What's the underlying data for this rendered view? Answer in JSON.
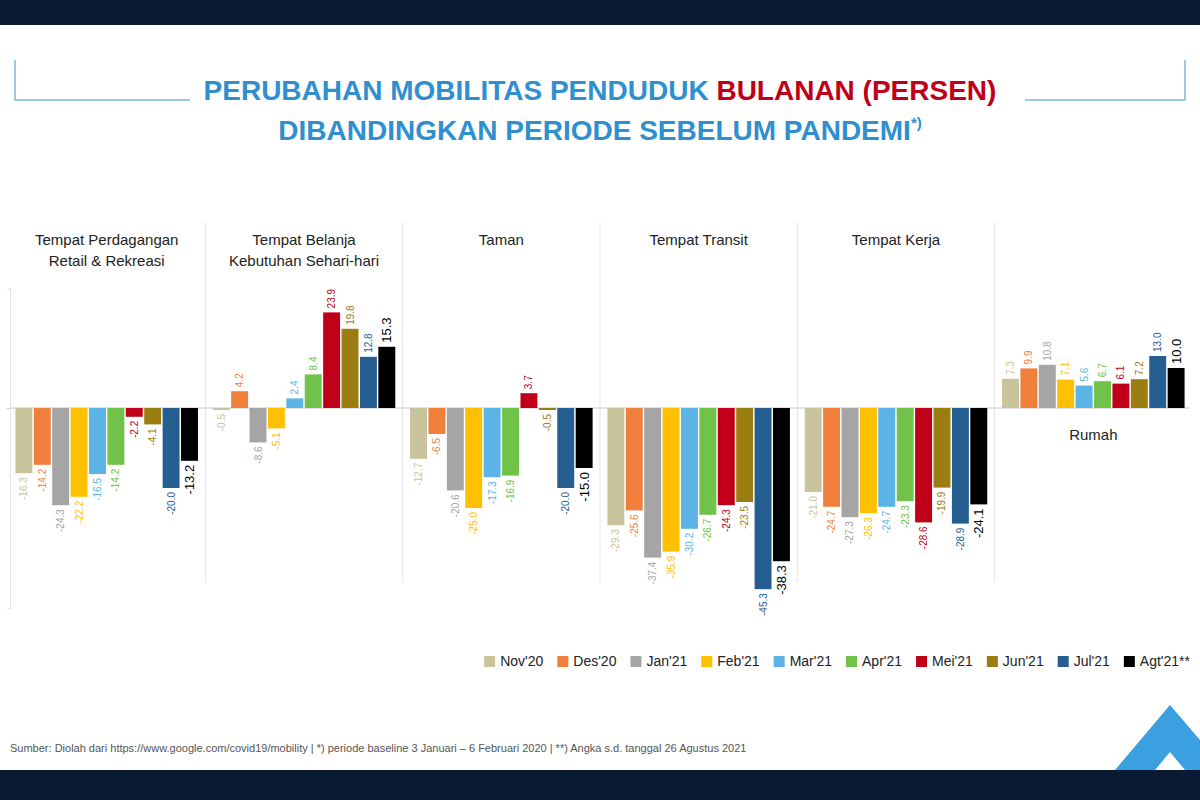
{
  "chart_data": {
    "type": "bar",
    "title": "PERUBAHAN MOBILITAS PENDUDUK BULANAN (PERSEN)",
    "subtitle": "DIBANDINGKAN PERIODE SEBELUM PANDEMI*)",
    "categories": [
      "Tempat Perdagangan Retail & Rekreasi",
      "Tempat Belanja Kebutuhan Sehari-hari",
      "Taman",
      "Tempat Transit",
      "Tempat Kerja",
      "Rumah"
    ],
    "series": [
      {
        "name": "Nov'20",
        "color": "#c9c49c",
        "values": [
          -16.3,
          -0.5,
          -12.7,
          -29.3,
          -21.0,
          7.3
        ],
        "value_labels": [
          "-16.3",
          "-0.5",
          "-12.7",
          "-29.3",
          "-21.0",
          "7.3"
        ]
      },
      {
        "name": "Des'20",
        "color": "#f07f3c",
        "values": [
          -14.2,
          4.2,
          -6.5,
          -25.6,
          -24.7,
          9.9
        ],
        "value_labels": [
          "-14.2",
          "4.2",
          "-6.5",
          "-25.6",
          "-24.7",
          "9.9"
        ]
      },
      {
        "name": "Jan'21",
        "color": "#a5a5a5",
        "values": [
          -24.3,
          -8.6,
          -20.6,
          -37.4,
          -27.3,
          10.8
        ],
        "value_labels": [
          "-24.3",
          "-8.6",
          "-20.6",
          "-37.4",
          "-27.3",
          "10.8"
        ]
      },
      {
        "name": "Feb'21",
        "color": "#ffc000",
        "values": [
          -22.2,
          -5.1,
          -25.0,
          -35.9,
          -26.3,
          7.1
        ],
        "value_labels": [
          "-22.2",
          "-5.1",
          "-25.0",
          "-35.9",
          "-26.3",
          "7.1"
        ]
      },
      {
        "name": "Mar'21",
        "color": "#5bb4e5",
        "values": [
          -16.5,
          2.4,
          -17.3,
          -30.2,
          -24.7,
          5.6
        ],
        "value_labels": [
          "-16.5",
          "2.4",
          "-17.3",
          "-30.2",
          "-24.7",
          "5.6"
        ]
      },
      {
        "name": "Apr'21",
        "color": "#70c24a",
        "values": [
          -14.2,
          8.4,
          -16.9,
          -26.7,
          -23.3,
          6.7
        ],
        "value_labels": [
          "-14.2",
          "8.4",
          "-16.9",
          "-26.7",
          "-23.3",
          "6.7"
        ]
      },
      {
        "name": "Mei'21",
        "color": "#c00018",
        "values": [
          -2.2,
          23.9,
          3.7,
          -24.3,
          -28.6,
          6.1
        ],
        "value_labels": [
          "-2.2",
          "23.9",
          "3.7",
          "-24.3",
          "-28.6",
          "6.1"
        ]
      },
      {
        "name": "Jun'21",
        "color": "#9c7d12",
        "values": [
          -4.1,
          19.8,
          -0.5,
          -23.5,
          -19.9,
          7.2
        ],
        "value_labels": [
          "-4.1",
          "19.8",
          "-0.5",
          "-23.5",
          "-19.9",
          "7.2"
        ]
      },
      {
        "name": "Jul'21",
        "color": "#255e91",
        "values": [
          -20.0,
          12.8,
          -20.0,
          -45.3,
          -28.9,
          13.0
        ],
        "value_labels": [
          "-20.0",
          "12.8",
          "-20.0",
          "-45.3",
          "-28.9",
          "13.0"
        ]
      },
      {
        "name": "Agt'21**",
        "color": "#000000",
        "values": [
          -13.2,
          15.3,
          -15.0,
          -38.3,
          -24.1,
          10.0
        ],
        "value_labels": [
          "-13.2",
          "15.3",
          "-15.0",
          "-38.3",
          "-24.1",
          "10.0"
        ]
      }
    ],
    "ylim": [
      -50,
      30
    ],
    "yticks": [
      0
    ],
    "grid": true,
    "data_labels": true,
    "tick_labels": false,
    "legend": "bottom-right",
    "annotations": [
      "Sumber: Diolah dari https://www.google.com/covid19/mobility  |  *) periode baseline 3 Januari – 6 Februari 2020  |  **) Angka s.d. tanggal 26 Agustus 2021"
    ]
  }
}
